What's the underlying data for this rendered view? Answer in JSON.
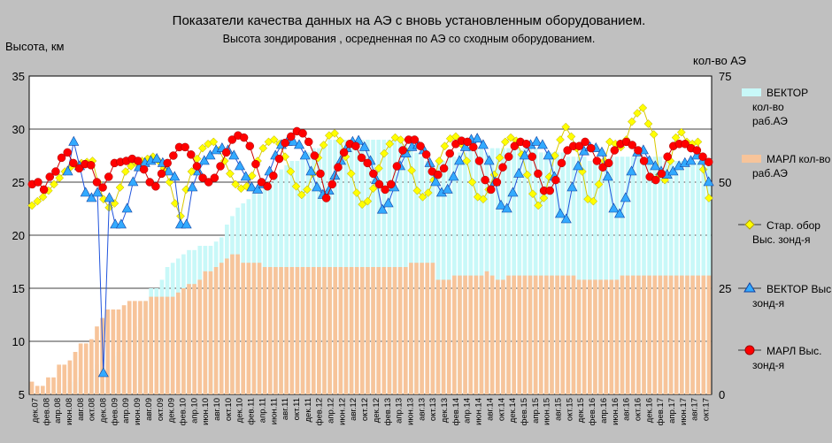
{
  "chart_data": {
    "type": "bar",
    "title": "Показатели качества данных на АЭ с вновь установленным оборудованием.",
    "subtitle": "Высота зондирования , осредненная по АЭ со сходным  оборудованием.",
    "ylabel": "Высота, км",
    "y2label": "кол-во АЭ",
    "ylim": [
      5,
      35
    ],
    "y2lim": [
      0,
      75
    ],
    "yticks": [
      "5",
      "10",
      "15",
      "20",
      "25",
      "30",
      "35"
    ],
    "y2ticks": [
      "0",
      "25",
      "50",
      "75"
    ],
    "grid": true,
    "legend_position": "right",
    "xticks": [
      "дек.07",
      "фев.08",
      "апр.08",
      "июн.08",
      "авг.08",
      "окт.08",
      "дек.08",
      "фев.09",
      "апр.09",
      "июн.09",
      "авг.09",
      "окт.09",
      "дек.09",
      "фев.10",
      "апр.10",
      "июн.10",
      "авг.10",
      "окт.10",
      "дек.10",
      "фев.11",
      "апр.11",
      "июн.11",
      "авг.11",
      "окт.11",
      "дек.11",
      "фев.12",
      "апр.12",
      "июн.12",
      "авг.12",
      "окт.12",
      "дек.12",
      "фев.13",
      "апр.13",
      "июн.13",
      "авг.13",
      "окт.13",
      "дек.13",
      "фев.14",
      "апр.14",
      "июн.14",
      "авг.14",
      "окт.14",
      "дек.14",
      "фев.15",
      "апр.15",
      "июн.15",
      "авг.15",
      "окт.15",
      "дек.15",
      "фев.16",
      "апр.16",
      "июн.16",
      "авг.16",
      "окт.16",
      "дек.16",
      "фев.17",
      "апр.17",
      "июн.17",
      "авг.17",
      "окт.17"
    ],
    "series": [
      {
        "name": "ВЕКТОР кол-во раб.АЭ",
        "kind": "bar",
        "axis": "y2",
        "color": "#c8f8f8",
        "values": [
          0,
          0,
          0,
          0,
          1,
          2,
          2,
          3,
          3,
          4,
          5,
          6,
          7,
          8,
          8,
          9,
          10,
          12,
          13,
          16,
          18,
          22,
          25,
          25,
          27,
          30,
          31,
          32,
          33,
          34,
          34,
          35,
          35,
          35,
          36,
          37,
          40,
          42,
          44,
          45,
          46,
          48,
          48,
          49,
          50,
          52,
          53,
          54,
          55,
          55,
          56,
          57,
          58,
          58,
          59,
          60,
          60,
          60,
          60,
          60,
          60,
          60,
          60,
          60,
          60,
          60,
          60,
          60,
          60,
          59,
          58,
          57,
          56,
          55,
          54,
          55,
          55,
          56,
          56,
          57,
          57,
          58,
          58,
          58,
          57,
          58,
          58,
          58,
          58,
          58,
          58,
          58,
          58,
          58,
          57,
          57,
          57,
          57,
          57,
          56,
          56,
          56,
          56,
          55,
          55,
          55,
          55,
          56,
          56,
          56,
          56,
          56,
          56,
          56,
          56,
          56,
          56,
          55,
          55,
          55,
          55,
          55,
          55,
          55,
          55,
          55
        ]
      },
      {
        "name": "МАРЛ кол-во раб.АЭ",
        "kind": "bar",
        "axis": "y2",
        "color": "#f7c49a",
        "values": [
          3,
          2,
          2,
          4,
          4,
          7,
          7,
          8,
          10,
          12,
          12,
          13,
          16,
          18,
          20,
          20,
          20,
          21,
          22,
          22,
          22,
          22,
          23,
          23,
          23,
          23,
          23,
          24,
          25,
          26,
          26,
          27,
          29,
          29,
          30,
          31,
          32,
          33,
          33,
          31,
          31,
          31,
          31,
          30,
          30,
          30,
          30,
          30,
          30,
          30,
          30,
          30,
          30,
          30,
          30,
          30,
          30,
          30,
          30,
          30,
          30,
          30,
          30,
          30,
          30,
          30,
          30,
          30,
          30,
          30,
          31,
          31,
          31,
          31,
          31,
          27,
          27,
          27,
          28,
          28,
          28,
          28,
          28,
          28,
          29,
          28,
          27,
          27,
          28,
          28,
          28,
          28,
          28,
          28,
          28,
          28,
          28,
          28,
          28,
          28,
          28,
          27,
          27,
          27,
          27,
          27,
          27,
          27,
          27,
          28,
          28,
          28,
          28,
          28,
          28,
          28,
          28,
          28,
          28,
          28,
          28,
          28,
          28,
          28,
          28,
          28
        ]
      },
      {
        "name": "Стар. обор Выс. зонд-я",
        "kind": "line",
        "axis": "y",
        "color": "#ffff00",
        "values": [
          22.8,
          23.2,
          23.6,
          24.2,
          24.8,
          25.4,
          26.0,
          26.4,
          26.6,
          26.8,
          26.9,
          27.0,
          25.0,
          23.4,
          22.6,
          23.0,
          24.5,
          26.0,
          26.5,
          26.8,
          27.0,
          27.2,
          27.4,
          27.0,
          26.3,
          25.0,
          23.0,
          21.8,
          24.3,
          26.0,
          27.2,
          28.2,
          28.6,
          28.8,
          28.0,
          27.0,
          25.8,
          24.8,
          24.4,
          24.6,
          25.6,
          27.0,
          28.2,
          28.8,
          29.0,
          28.6,
          27.4,
          26.0,
          24.6,
          23.8,
          24.3,
          25.8,
          27.3,
          28.5,
          29.4,
          29.6,
          28.9,
          27.4,
          25.8,
          24.0,
          22.9,
          23.2,
          24.4,
          26.3,
          27.7,
          28.6,
          29.2,
          29.0,
          27.9,
          26.1,
          24.2,
          23.6,
          24.0,
          25.2,
          27.0,
          28.4,
          29.1,
          29.3,
          28.6,
          27.0,
          25.0,
          23.6,
          23.4,
          24.3,
          25.7,
          27.3,
          28.8,
          29.2,
          28.9,
          27.6,
          25.7,
          23.9,
          22.8,
          23.5,
          25.5,
          27.5,
          29.0,
          30.2,
          29.3,
          28.2,
          26.0,
          23.4,
          23.2,
          24.8,
          27.0,
          28.8,
          28.6,
          28.3,
          29.0,
          30.7,
          31.5,
          32.0,
          30.5,
          29.5,
          25.7,
          25.2,
          27.0,
          29.2,
          29.7,
          28.8,
          28.6,
          28.8,
          26.2,
          23.5
        ]
      },
      {
        "name": "ВЕКТОР Выс. зонд-я",
        "kind": "line",
        "axis": "y",
        "color": "#33aaff",
        "values": [
          null,
          null,
          null,
          null,
          null,
          null,
          26.0,
          28.8,
          26.5,
          24.0,
          23.5,
          24.0,
          7.0,
          23.5,
          21.0,
          21.0,
          22.5,
          25.0,
          26.4,
          26.8,
          27.0,
          27.2,
          26.8,
          26.0,
          25.5,
          21.0,
          21.0,
          24.5,
          26.0,
          27.0,
          27.5,
          28.0,
          28.2,
          28.0,
          27.5,
          26.5,
          25.5,
          24.5,
          24.3,
          24.8,
          26.0,
          27.5,
          28.5,
          28.8,
          28.8,
          28.5,
          27.5,
          26.0,
          24.5,
          23.8,
          24.2,
          25.6,
          27.0,
          28.2,
          28.8,
          28.9,
          28.3,
          27.0,
          25.2,
          22.4,
          23.0,
          24.5,
          26.5,
          27.7,
          28.3,
          28.5,
          28.0,
          26.8,
          25.0,
          24.0,
          24.3,
          25.5,
          27.0,
          28.3,
          29.0,
          29.1,
          28.5,
          27.0,
          25.0,
          22.8,
          22.5,
          24.0,
          25.8,
          27.5,
          28.5,
          28.8,
          28.5,
          27.5,
          25.5,
          22.0,
          21.5,
          24.5,
          26.5,
          27.9,
          28.3,
          28.2,
          27.8,
          25.5,
          22.5,
          22.0,
          23.5,
          26.0,
          27.8,
          28.0,
          27.0,
          26.5,
          26.0,
          25.7,
          26.0,
          26.5,
          26.8,
          27.0,
          27.5,
          27.0,
          25.0
        ]
      },
      {
        "name": "МАРЛ Выс. зонд-я",
        "kind": "line",
        "axis": "y",
        "color": "#ff0000",
        "values": [
          24.8,
          25.0,
          24.3,
          25.5,
          26.0,
          27.3,
          27.8,
          26.8,
          26.3,
          26.7,
          26.6,
          25.0,
          24.5,
          25.5,
          26.8,
          26.9,
          27.0,
          27.2,
          27.0,
          26.2,
          25.0,
          24.6,
          25.8,
          26.8,
          27.5,
          28.3,
          28.3,
          27.6,
          26.5,
          25.4,
          25.0,
          25.4,
          26.5,
          27.8,
          29.0,
          29.4,
          29.2,
          28.4,
          26.7,
          25.0,
          24.6,
          25.6,
          27.2,
          28.7,
          29.3,
          29.8,
          29.6,
          28.8,
          27.5,
          25.8,
          23.5,
          24.8,
          26.4,
          27.8,
          28.6,
          28.4,
          27.3,
          26.8,
          25.8,
          24.8,
          24.3,
          24.8,
          26.5,
          28.0,
          29.0,
          29.0,
          28.4,
          27.6,
          26.0,
          25.7,
          26.3,
          27.7,
          28.6,
          28.9,
          28.8,
          28.3,
          27.0,
          25.2,
          24.3,
          25.0,
          26.4,
          27.4,
          28.4,
          28.8,
          28.6,
          27.4,
          25.8,
          24.2,
          24.2,
          25.2,
          26.8,
          28.0,
          28.4,
          28.4,
          28.8,
          28.2,
          27.0,
          26.4,
          26.8,
          28.0,
          28.6,
          28.8,
          28.5,
          28.0,
          27.0,
          25.5,
          25.2,
          25.8,
          27.4,
          28.4,
          28.6,
          28.6,
          28.2,
          28.0,
          27.4,
          26.9
        ]
      }
    ]
  }
}
